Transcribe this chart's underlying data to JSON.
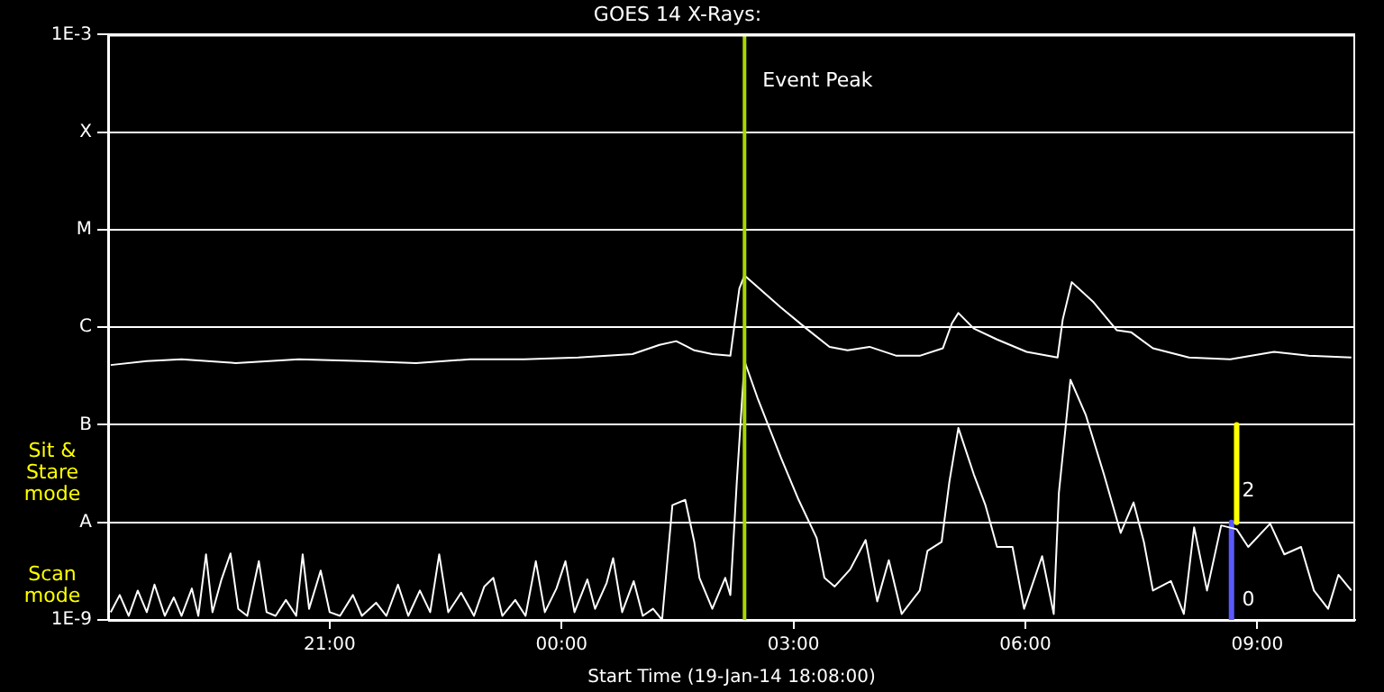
{
  "chart_data": {
    "type": "line",
    "title": "GOES 14 X-Rays:",
    "xlabel": "Start Time (19-Jan-14 18:08:00)",
    "log": "y",
    "grid": "y",
    "legend": false,
    "marker": "none",
    "line_style": "solid",
    "xlim": [
      "--01-19T18:08",
      "--01-20T10:16"
    ],
    "xticks": [
      {
        "value": "--01-19T21:00",
        "label": "21:00"
      },
      {
        "value": "--01-20T00:00",
        "label": "00:00"
      },
      {
        "value": "--01-20T03:00",
        "label": "03:00"
      },
      {
        "value": "--01-20T06:00",
        "label": "06:00"
      },
      {
        "value": "--01-20T09:00",
        "label": "09:00"
      }
    ],
    "ylim": [
      1e-09,
      0.001
    ],
    "yticks": [
      {
        "value": 1e-09,
        "label": "1E-9"
      },
      {
        "value": 1e-08,
        "label": "A"
      },
      {
        "value": 1e-07,
        "label": "B"
      },
      {
        "value": 1e-06,
        "label": "C"
      },
      {
        "value": 1e-05,
        "label": "M"
      },
      {
        "value": 0.0001,
        "label": "X"
      },
      {
        "value": 0.001,
        "label": "1E-3"
      }
    ],
    "series": [
      {
        "color": "#ffffff",
        "x": [
          "--01-19T18:10",
          "--01-19T18:38",
          "--01-19T19:05",
          "--01-19T19:47",
          "--01-19T20:36",
          "--01-19T21:25",
          "--01-19T22:07",
          "--01-19T22:49",
          "--01-19T23:31",
          "--01-20T00:13",
          "--01-20T00:55",
          "--01-20T01:16",
          "--01-20T01:29",
          "--01-20T01:43",
          "--01-20T01:57",
          "--01-20T02:11",
          "--01-20T02:18",
          "--01-20T02:22",
          "--01-20T02:50",
          "--01-20T03:10",
          "--01-20T03:28",
          "--01-20T03:42",
          "--01-20T03:59",
          "--01-20T04:20",
          "--01-20T04:38",
          "--01-20T04:56",
          "--01-20T05:03",
          "--01-20T05:08",
          "--01-20T05:20",
          "--01-20T05:38",
          "--01-20T06:01",
          "--01-20T06:25",
          "--01-20T06:29",
          "--01-20T06:36",
          "--01-20T06:53",
          "--01-20T07:11",
          "--01-20T07:22",
          "--01-20T07:39",
          "--01-20T08:07",
          "--01-20T08:39",
          "--01-20T09:13",
          "--01-20T09:40",
          "--01-20T10:13"
        ],
        "values": [
          4.1e-07,
          4.5e-07,
          4.7e-07,
          4.3e-07,
          4.7e-07,
          4.5e-07,
          4.3e-07,
          4.7e-07,
          4.7e-07,
          4.9e-07,
          5.3e-07,
          6.6e-07,
          7.2e-07,
          5.8e-07,
          5.3e-07,
          5.1e-07,
          2.5e-06,
          3.4e-06,
          1.6e-06,
          9.7e-07,
          6.3e-07,
          5.8e-07,
          6.3e-07,
          5.1e-07,
          5.1e-07,
          6.1e-07,
          1.1e-06,
          1.4e-06,
          9.7e-07,
          7.5e-07,
          5.6e-07,
          4.9e-07,
          1.2e-06,
          2.9e-06,
          1.8e-06,
          9.3e-07,
          8.9e-07,
          6.1e-07,
          4.9e-07,
          4.7e-07,
          5.6e-07,
          5.1e-07,
          4.9e-07
        ]
      },
      {
        "color": "#ffffff",
        "x": [
          "--01-19T18:10",
          "--01-19T18:17",
          "--01-19T18:24",
          "--01-19T18:31",
          "--01-19T18:38",
          "--01-19T18:44",
          "--01-19T18:52",
          "--01-19T18:59",
          "--01-19T19:05",
          "--01-19T19:13",
          "--01-19T19:18",
          "--01-19T19:24",
          "--01-19T19:29",
          "--01-19T19:36",
          "--01-19T19:43",
          "--01-19T19:49",
          "--01-19T19:56",
          "--01-19T20:05",
          "--01-19T20:11",
          "--01-19T20:18",
          "--01-19T20:26",
          "--01-19T20:34",
          "--01-19T20:39",
          "--01-19T20:44",
          "--01-19T20:53",
          "--01-19T21:00",
          "--01-19T21:08",
          "--01-19T21:18",
          "--01-19T21:25",
          "--01-19T21:36",
          "--01-19T21:44",
          "--01-19T21:53",
          "--01-19T22:01",
          "--01-19T22:10",
          "--01-19T22:18",
          "--01-19T22:25",
          "--01-19T22:32",
          "--01-19T22:42",
          "--01-19T22:52",
          "--01-19T23:00",
          "--01-19T23:07",
          "--01-19T23:14",
          "--01-19T23:24",
          "--01-19T23:32",
          "--01-19T23:40",
          "--01-19T23:47",
          "--01-19T23:56",
          "--01-20T00:03",
          "--01-20T00:10",
          "--01-20T00:20",
          "--01-20T00:26",
          "--01-20T00:35",
          "--01-20T00:40",
          "--01-20T00:47",
          "--01-20T00:56",
          "--01-20T01:03",
          "--01-20T01:11",
          "--01-20T01:18",
          "--01-20T01:26",
          "--01-20T01:36",
          "--01-20T01:43",
          "--01-20T01:47",
          "--01-20T01:57",
          "--01-20T02:07",
          "--01-20T02:11",
          "--01-20T02:16",
          "--01-20T02:22",
          "--01-20T02:32",
          "--01-20T02:50",
          "--01-20T03:04",
          "--01-20T03:18",
          "--01-20T03:24",
          "--01-20T03:32",
          "--01-20T03:44",
          "--01-20T03:56",
          "--01-20T04:05",
          "--01-20T04:14",
          "--01-20T04:24",
          "--01-20T04:38",
          "--01-20T04:44",
          "--01-20T04:55",
          "--01-20T05:01",
          "--01-20T05:08",
          "--01-20T05:20",
          "--01-20T05:29",
          "--01-20T05:38",
          "--01-20T05:50",
          "--01-20T05:59",
          "--01-20T06:13",
          "--01-20T06:22",
          "--01-20T06:26",
          "--01-20T06:35",
          "--01-20T06:47",
          "--01-20T07:01",
          "--01-20T07:14",
          "--01-20T07:24",
          "--01-20T07:32",
          "--01-20T07:39",
          "--01-20T07:53",
          "--01-20T08:03",
          "--01-20T08:11",
          "--01-20T08:21",
          "--01-20T08:32",
          "--01-20T08:44",
          "--01-20T08:53",
          "--01-20T09:10",
          "--01-20T09:21",
          "--01-20T09:34",
          "--01-20T09:44",
          "--01-20T09:55",
          "--01-20T10:03",
          "--01-20T10:13"
        ],
        "values": [
          1.2e-09,
          1.8e-09,
          1.1e-09,
          2e-09,
          1.2e-09,
          2.3e-09,
          1.1e-09,
          1.7e-09,
          1.1e-09,
          2.1e-09,
          1.1e-09,
          4.7e-09,
          1.2e-09,
          2.6e-09,
          4.8e-09,
          1.3e-09,
          1.1e-09,
          4e-09,
          1.2e-09,
          1.1e-09,
          1.6e-09,
          1.1e-09,
          4.7e-09,
          1.3e-09,
          3.2e-09,
          1.2e-09,
          1.1e-09,
          1.8e-09,
          1.1e-09,
          1.5e-09,
          1.1e-09,
          2.3e-09,
          1.1e-09,
          2e-09,
          1.2e-09,
          4.7e-09,
          1.2e-09,
          1.9e-09,
          1.1e-09,
          2.2e-09,
          2.7e-09,
          1.1e-09,
          1.6e-09,
          1.1e-09,
          4e-09,
          1.2e-09,
          2.1e-09,
          4e-09,
          1.2e-09,
          2.6e-09,
          1.3e-09,
          2.4e-09,
          4.3e-09,
          1.2e-09,
          2.5e-09,
          1.1e-09,
          1.3e-09,
          1e-09,
          1.5e-08,
          1.7e-08,
          6.3e-09,
          2.7e-09,
          1.3e-09,
          2.7e-09,
          1.8e-09,
          2.6e-08,
          4.5e-07,
          1.9e-07,
          4.7e-08,
          1.7e-08,
          6.9e-09,
          2.7e-09,
          2.2e-09,
          3.3e-09,
          6.6e-09,
          1.55e-09,
          4.1e-09,
          1.15e-09,
          2e-09,
          5.1e-09,
          6.3e-09,
          2.6e-08,
          9.3e-08,
          3.1e-08,
          1.5e-08,
          5.6e-09,
          5.6e-09,
          1.3e-09,
          4.5e-09,
          1.15e-09,
          2e-08,
          2.9e-07,
          1.25e-07,
          3.1e-08,
          7.8e-09,
          1.6e-08,
          6.3e-09,
          2e-09,
          2.5e-09,
          1.15e-09,
          8.9e-09,
          2e-09,
          9.3e-09,
          8.5e-09,
          5.6e-09,
          9.7e-09,
          4.7e-09,
          5.6e-09,
          2e-09,
          1.3e-09,
          2.9e-09,
          2e-09
        ]
      },
      {
        "color": "#ffff00",
        "x": [
          "--01-20T08:44",
          "--01-20T08:44"
        ],
        "values": [
          1e-07,
          1e-08
        ]
      },
      {
        "color": "#5a5aff",
        "x": [
          "--01-20T08:40",
          "--01-20T08:40"
        ],
        "values": [
          1e-08,
          1e-09
        ]
      }
    ],
    "ref_lines": [
      {
        "axis": "x",
        "value": "--01-20T02:22",
        "label": "Event Peak",
        "color": "#a8d800"
      }
    ],
    "annotations": [
      "Sit & Stare mode",
      "Scan mode",
      {
        "text": "2",
        "x": "--01-20T08:44",
        "y": 2.1e-08
      },
      {
        "text": "0",
        "x": "--01-20T08:44",
        "y": 1.6e-09
      }
    ]
  }
}
